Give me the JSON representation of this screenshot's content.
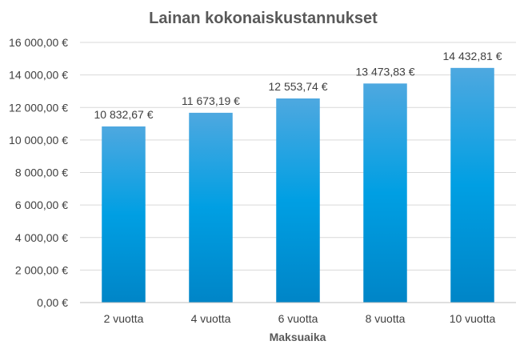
{
  "chart_data": {
    "type": "bar",
    "title": "Lainan kokonaiskustannukset",
    "xlabel": "Maksuaika",
    "ylabel": "",
    "categories": [
      "2 vuotta",
      "4 vuotta",
      "6 vuotta",
      "8 vuotta",
      "10 vuotta"
    ],
    "values": [
      10832.67,
      11673.19,
      12553.74,
      13473.83,
      14432.81
    ],
    "data_labels": [
      "10 832,67 €",
      "11 673,19 €",
      "12 553,74 €",
      "13 473,83 €",
      "14 432,81 €"
    ],
    "ylim": [
      0,
      16000
    ],
    "yticks": [
      0,
      2000,
      4000,
      6000,
      8000,
      10000,
      12000,
      14000,
      16000
    ],
    "ytick_labels": [
      "0,00 €",
      "2 000,00 €",
      "4 000,00 €",
      "6 000,00 €",
      "8 000,00 €",
      "10 000,00 €",
      "12 000,00 €",
      "14 000,00 €",
      "16 000,00 €"
    ],
    "grid": true,
    "legend": "none",
    "colors": {
      "bar_top": "#4ea8e0",
      "bar_mid": "#009fe3",
      "bar_bottom": "#0085c7"
    }
  }
}
